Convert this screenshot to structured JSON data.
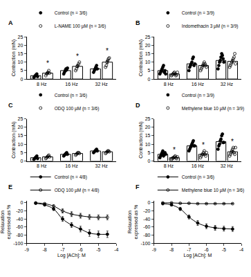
{
  "chart_data": [
    {
      "type": "bar",
      "title": "A",
      "y_label": "Contraction (mN)",
      "categories": [
        "8 Hz",
        "16 Hz",
        "32 Hz"
      ],
      "ylim": [
        0,
        25
      ],
      "yticks": [
        0,
        5,
        10,
        15,
        20,
        25
      ],
      "legend": "top left",
      "series": [
        {
          "name": "Control (n = 3/6)",
          "color": "#000000",
          "marker": "circle",
          "values": [
            2,
            5,
            6
          ],
          "errors": [
            0.4,
            0.6,
            0.7
          ],
          "points": [
            [
              1,
              1.5,
              2,
              2.5,
              3,
              1.5
            ],
            [
              3,
              4,
              5,
              6,
              5.5,
              6.5
            ],
            [
              4,
              5,
              6,
              7,
              8,
              6
            ]
          ]
        },
        {
          "name": "L-NAME 100 µM (n = 3/6)",
          "color": "#000000",
          "marker": "circle-open",
          "values": [
            3.5,
            7.5,
            10
          ],
          "errors": [
            0.5,
            0.8,
            0.9
          ],
          "points": [
            [
              2,
              3,
              3.5,
              4,
              5,
              3.5
            ],
            [
              5,
              6,
              7.5,
              8,
              9,
              10
            ],
            [
              7,
              8,
              10,
              11,
              12,
              12.5
            ]
          ]
        }
      ],
      "annotations": [
        {
          "x": "8 Hz",
          "series": "L-NAME 100 µM (n = 3/6)",
          "y": 6,
          "text": "*"
        },
        {
          "x": "16 Hz",
          "series": "L-NAME 100 µM (n = 3/6)",
          "y": 10.5,
          "text": "*"
        },
        {
          "x": "32 Hz",
          "series": "L-NAME 100 µM (n = 3/6)",
          "y": 13.5,
          "text": "*"
        }
      ]
    },
    {
      "type": "bar",
      "title": "B",
      "y_label": "Contraction (mN)",
      "categories": [
        "8 Hz",
        "16 Hz",
        "32 Hz"
      ],
      "ylim": [
        0,
        25
      ],
      "yticks": [
        0,
        5,
        10,
        15,
        20,
        25
      ],
      "legend": "top left",
      "series": [
        {
          "name": "Control (n = 3/9)",
          "color": "#000000",
          "marker": "circle",
          "values": [
            5,
            9,
            11
          ],
          "errors": [
            0.6,
            0.9,
            1
          ],
          "points": [
            [
              3,
              4,
              5,
              6,
              7,
              8,
              4,
              5,
              3
            ],
            [
              5,
              7,
              8,
              9,
              10,
              12,
              13,
              8,
              9
            ],
            [
              6,
              8,
              10,
              11,
              13,
              15,
              14,
              12,
              10
            ]
          ]
        },
        {
          "name": "Indomethacin 3 µM (n = 3/9)",
          "color": "#000000",
          "marker": "circle-open",
          "values": [
            3,
            8,
            10.5
          ],
          "errors": [
            0.3,
            0.6,
            0.9
          ],
          "points": [
            [
              2,
              2.5,
              3,
              3.5,
              4,
              3,
              2,
              2.5,
              4
            ],
            [
              5,
              6,
              7,
              8,
              9,
              10,
              9,
              8,
              7
            ],
            [
              7,
              8,
              9,
              10,
              11,
              12,
              13,
              15,
              9
            ]
          ]
        }
      ]
    },
    {
      "type": "bar",
      "title": "C",
      "y_label": "Contraction (mN)",
      "categories": [
        "8 Hz",
        "16 Hz",
        "32 Hz"
      ],
      "ylim": [
        0,
        25
      ],
      "yticks": [
        0,
        5,
        10,
        15,
        20,
        25
      ],
      "legend": "top left",
      "series": [
        {
          "name": "Control (n = 3/6)",
          "color": "#000000",
          "marker": "circle",
          "values": [
            2,
            4,
            6
          ],
          "errors": [
            0.3,
            0.4,
            0.4
          ],
          "points": [
            [
              1,
              1.5,
              2,
              2.5,
              3,
              1.5
            ],
            [
              3,
              3.5,
              4,
              4.5,
              5,
              4
            ],
            [
              5,
              5.5,
              6,
              6.5,
              7,
              6
            ]
          ]
        },
        {
          "name": "ODQ 100 µM (n = 3/6)",
          "color": "#000000",
          "marker": "circle-open",
          "values": [
            2.5,
            4.5,
            5.5
          ],
          "errors": [
            0.3,
            0.3,
            0.3
          ],
          "points": [
            [
              1.5,
              2,
              2.5,
              3,
              3.5,
              2.5
            ],
            [
              3.5,
              4,
              4.5,
              5,
              5,
              4.5
            ],
            [
              4.5,
              5,
              5.5,
              6,
              6,
              5.5
            ]
          ]
        }
      ]
    },
    {
      "type": "bar",
      "title": "D",
      "y_label": "Contraction (mN)",
      "categories": [
        "8 Hz",
        "16 Hz",
        "32 Hz"
      ],
      "ylim": [
        0,
        25
      ],
      "yticks": [
        0,
        5,
        10,
        15,
        20,
        25
      ],
      "legend": "top left",
      "series": [
        {
          "name": "Control (n = 3/9)",
          "color": "#000000",
          "marker": "circle",
          "values": [
            4,
            9,
            11.5
          ],
          "errors": [
            0.5,
            0.7,
            1
          ],
          "points": [
            [
              2,
              3,
              4,
              5,
              6,
              3,
              4,
              5,
              4
            ],
            [
              6,
              7,
              8,
              9,
              10,
              11,
              12,
              9,
              9
            ],
            [
              7,
              9,
              10,
              12,
              13,
              15,
              16,
              11,
              11
            ]
          ]
        },
        {
          "name": "Methylene blue 10 µM (n = 3/9)",
          "color": "#000000",
          "marker": "circle-open",
          "values": [
            2,
            4,
            5.5
          ],
          "errors": [
            0.2,
            0.4,
            0.6
          ],
          "points": [
            [
              1,
              1.5,
              2,
              2,
              2.5,
              3,
              2,
              1.5,
              2.5
            ],
            [
              2,
              3,
              4,
              4,
              5,
              6,
              4,
              3,
              5
            ],
            [
              3,
              4,
              5,
              6,
              7,
              8,
              5,
              4,
              8
            ]
          ]
        }
      ],
      "annotations": [
        {
          "x": "8 Hz",
          "series": "Methylene blue 10 µM (n = 3/9)",
          "y": 3.5,
          "text": "*"
        },
        {
          "x": "16 Hz",
          "series": "Methylene blue 10 µM (n = 3/9)",
          "y": 6.5,
          "text": "*"
        },
        {
          "x": "32 Hz",
          "series": "Methylene blue 10 µM (n = 3/9)",
          "y": 8.5,
          "text": "*"
        }
      ]
    },
    {
      "type": "line",
      "title": "E",
      "x_label": "Log [ACh]: M",
      "y_label": "Relaxation expressed as %",
      "x": [
        -8.5,
        -8,
        -7.5,
        -7,
        -6.5,
        -6,
        -5.5,
        -5,
        -4.5
      ],
      "xlim": [
        -9,
        -4
      ],
      "xticks": [
        -9,
        -8,
        -7,
        -6,
        -5,
        -4
      ],
      "ylim": [
        -100,
        5
      ],
      "yticks": [
        0,
        -20,
        -40,
        -60,
        -80,
        -100
      ],
      "legend": "top left",
      "series": [
        {
          "name": "Control (n = 4/8)",
          "color": "#000000",
          "marker": "circle",
          "values": [
            -1,
            -5,
            -15,
            -40,
            -55,
            -65,
            -75,
            -78,
            -78
          ],
          "errors": [
            1,
            2,
            4,
            6,
            6,
            7,
            8,
            8,
            8
          ]
        },
        {
          "name": "ODQ 100 µM (n = 4/8)",
          "color": "#000000",
          "marker": "circle-open",
          "values": [
            0,
            -2,
            -8,
            -20,
            -28,
            -32,
            -35,
            -36,
            -36
          ],
          "errors": [
            1,
            1,
            3,
            5,
            6,
            6,
            6,
            6,
            6
          ]
        }
      ]
    },
    {
      "type": "line",
      "title": "F",
      "x_label": "Log [ACh]: M",
      "y_label": "Relaxation expressed as %",
      "x": [
        -8.5,
        -8,
        -7.5,
        -7,
        -6.5,
        -6,
        -5.5,
        -5,
        -4.5
      ],
      "xlim": [
        -9,
        -4
      ],
      "xticks": [
        -9,
        -8,
        -7,
        -6,
        -5,
        -4
      ],
      "ylim": [
        -100,
        5
      ],
      "yticks": [
        0,
        -20,
        -40,
        -60,
        -80,
        -100
      ],
      "legend": "top left",
      "series": [
        {
          "name": "Control (n = 3/6)",
          "color": "#000000",
          "marker": "circle",
          "values": [
            -2,
            -5,
            -15,
            -35,
            -50,
            -58,
            -62,
            -64,
            -65
          ],
          "errors": [
            1,
            2,
            4,
            5,
            6,
            6,
            6,
            6,
            6
          ]
        },
        {
          "name": "Methylene blue 10 µM (n = 3/6)",
          "color": "#000000",
          "marker": "circle-open",
          "values": [
            0,
            0,
            -1,
            -1,
            -2,
            -2,
            -2,
            -2,
            -2
          ],
          "errors": [
            1,
            1,
            1,
            1,
            1,
            1,
            1,
            1,
            1
          ]
        }
      ]
    }
  ]
}
